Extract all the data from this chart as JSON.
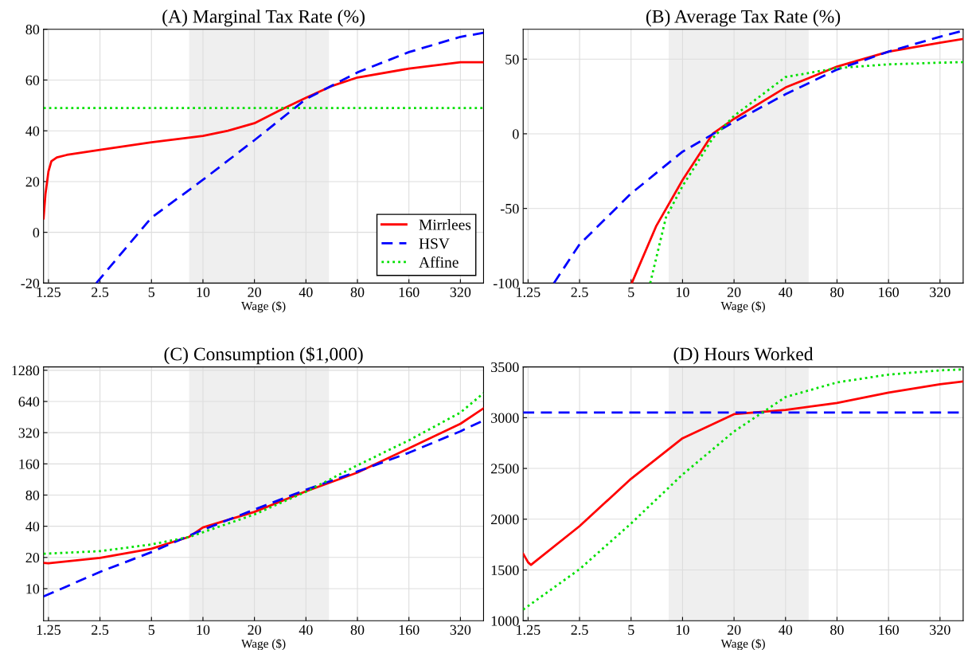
{
  "chart_data": [
    {
      "type": "line",
      "title": "(A) Marginal Tax Rate (%)",
      "xlabel": "Wage ($)",
      "log": "x",
      "grid": true,
      "legend": "bottom right",
      "xlim": [
        1.17,
        437
      ],
      "xticks": [
        1.25,
        2.5,
        5,
        10,
        20,
        40,
        80,
        160,
        320
      ],
      "ylim": [
        -20,
        80
      ],
      "yticks": [
        -20,
        0,
        20,
        40,
        60,
        80
      ],
      "bands": [
        {
          "axis": "x",
          "from": 8.3,
          "to": 54.6,
          "color": "#efefef"
        }
      ],
      "series": [
        {
          "name": "Mirrlees",
          "color": "#ff0000",
          "line_style": "solid",
          "x": [
            1.17,
            1.2,
            1.25,
            1.3,
            1.4,
            1.6,
            2.5,
            5,
            10,
            14,
            20,
            28,
            40,
            56,
            80,
            160,
            320,
            437
          ],
          "values": [
            5.5,
            15,
            24,
            28,
            29.5,
            30.5,
            32.5,
            35.5,
            38,
            40,
            43,
            48,
            53,
            57.5,
            61,
            64.5,
            67,
            67
          ]
        },
        {
          "name": "HSV",
          "color": "#0000ff",
          "line_style": "dashed",
          "x": [
            2.38,
            5,
            10,
            20,
            40,
            80,
            160,
            320,
            437
          ],
          "values": [
            -20,
            5.8,
            20.7,
            36.3,
            52.5,
            63,
            71,
            77,
            78.6
          ]
        },
        {
          "name": "Affine",
          "color": "#00e000",
          "line_style": "dotted",
          "x": [
            1.17,
            437
          ],
          "values": [
            49,
            49
          ]
        }
      ]
    },
    {
      "type": "line",
      "title": "(B) Average Tax Rate (%)",
      "xlabel": "Wage ($)",
      "log": "x",
      "grid": true,
      "xlim": [
        1.17,
        437
      ],
      "xticks": [
        1.25,
        2.5,
        5,
        10,
        20,
        40,
        80,
        160,
        320
      ],
      "ylim": [
        -100,
        70
      ],
      "yticks": [
        -100,
        -50,
        0,
        50
      ],
      "bands": [
        {
          "axis": "x",
          "from": 8.3,
          "to": 54.6,
          "color": "#efefef"
        }
      ],
      "series": [
        {
          "color": "#ff0000",
          "line_style": "solid",
          "x": [
            5.05,
            7,
            10,
            15,
            20,
            40,
            80,
            160,
            320,
            437
          ],
          "values": [
            -100,
            -62,
            -31,
            0,
            10,
            31,
            45,
            55,
            61,
            63.5
          ]
        },
        {
          "color": "#0000ff",
          "line_style": "dashed",
          "x": [
            1.77,
            2.5,
            5,
            10,
            20,
            40,
            80,
            160,
            320,
            437
          ],
          "values": [
            -100,
            -74,
            -40,
            -12,
            8,
            26.5,
            43,
            55,
            65,
            69
          ]
        },
        {
          "color": "#00e000",
          "line_style": "dotted",
          "x": [
            6.47,
            8,
            10,
            15,
            20,
            40,
            80,
            160,
            320,
            437
          ],
          "values": [
            -100,
            -56,
            -35,
            -3,
            12,
            38,
            44,
            46.5,
            47.6,
            48
          ]
        }
      ]
    },
    {
      "type": "line",
      "title": "(C) Consumption ($1,000)",
      "xlabel": "Wage ($)",
      "log": "xy",
      "grid": true,
      "xlim": [
        1.17,
        437
      ],
      "xticks": [
        1.25,
        2.5,
        5,
        10,
        20,
        40,
        80,
        160,
        320
      ],
      "ylim": [
        4.9,
        1380
      ],
      "yticks": [
        10,
        20,
        40,
        80,
        160,
        320,
        640,
        1280
      ],
      "bands": [
        {
          "axis": "x",
          "from": 8.3,
          "to": 54.6,
          "color": "#efefef"
        }
      ],
      "series": [
        {
          "color": "#ff0000",
          "line_style": "solid",
          "x": [
            1.17,
            1.25,
            2.5,
            5,
            8.3,
            10,
            20,
            40,
            80,
            160,
            320,
            437
          ],
          "values": [
            17.7,
            17.6,
            19.8,
            24.3,
            31.6,
            39,
            55,
            87,
            132,
            226,
            390,
            550
          ]
        },
        {
          "color": "#0000ff",
          "line_style": "dashed",
          "x": [
            1.17,
            2.5,
            5,
            10,
            20,
            40,
            80,
            160,
            320,
            437
          ],
          "values": [
            8.4,
            14.5,
            22.5,
            37,
            58,
            90,
            135,
            205,
            330,
            420
          ]
        },
        {
          "color": "#00e000",
          "line_style": "dotted",
          "x": [
            1.17,
            2.5,
            5,
            8.3,
            20,
            40,
            80,
            160,
            320,
            437
          ],
          "values": [
            21.7,
            23,
            26.7,
            31.5,
            52,
            86,
            155,
            270,
            500,
            770
          ]
        }
      ]
    },
    {
      "type": "line",
      "title": "(D) Hours Worked",
      "xlabel": "Wage ($)",
      "log": "x",
      "grid": true,
      "xlim": [
        1.17,
        437
      ],
      "xticks": [
        1.25,
        2.5,
        5,
        10,
        20,
        40,
        80,
        160,
        320
      ],
      "ylim": [
        1000,
        3500
      ],
      "yticks": [
        1000,
        1500,
        2000,
        2500,
        3000,
        3500
      ],
      "bands": [
        {
          "axis": "x",
          "from": 8.3,
          "to": 54.6,
          "color": "#efefef"
        }
      ],
      "series": [
        {
          "color": "#ff0000",
          "line_style": "solid",
          "x": [
            1.17,
            1.25,
            1.3,
            2.5,
            5,
            10,
            20,
            40,
            80,
            160,
            320,
            437
          ],
          "values": [
            1660,
            1576,
            1550,
            1932,
            2398,
            2797,
            3034,
            3076,
            3144,
            3246,
            3330,
            3356
          ]
        },
        {
          "color": "#0000ff",
          "line_style": "dashed",
          "x": [
            1.17,
            437
          ],
          "values": [
            3050,
            3050
          ]
        },
        {
          "color": "#00e000",
          "line_style": "dotted",
          "x": [
            1.17,
            2.5,
            5,
            10,
            20,
            40,
            80,
            160,
            320,
            437
          ],
          "values": [
            1110,
            1508,
            1958,
            2440,
            2864,
            3203,
            3347,
            3424,
            3466,
            3475
          ]
        }
      ]
    }
  ]
}
